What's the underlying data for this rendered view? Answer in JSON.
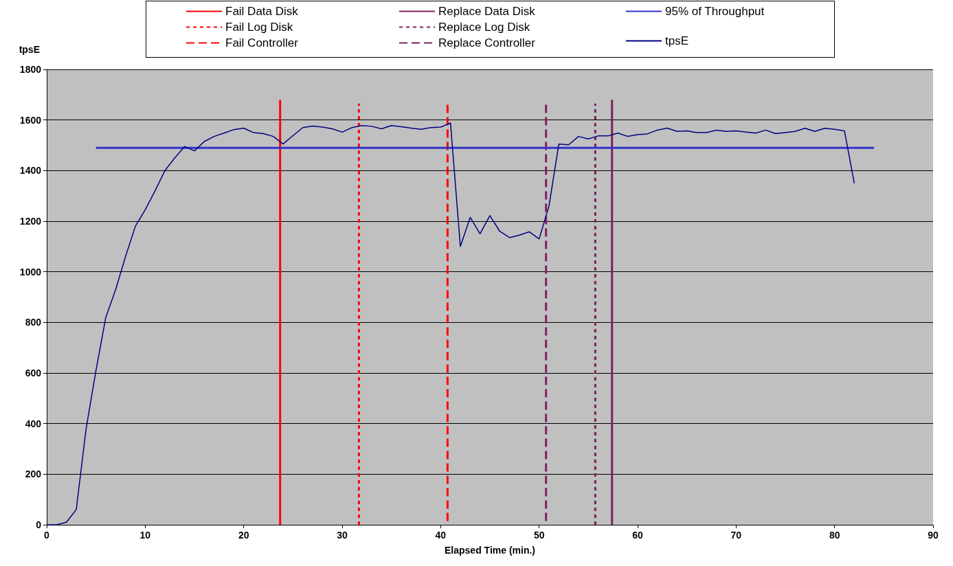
{
  "chart_data": {
    "type": "line",
    "xlabel": "Elapsed Time (min.)",
    "ylabel": "tpsE",
    "xlim": [
      0,
      90
    ],
    "xticks": [
      0,
      10,
      20,
      30,
      40,
      50,
      60,
      70,
      80,
      90
    ],
    "ylim": [
      0,
      1800
    ],
    "yticks": [
      0,
      200,
      400,
      600,
      800,
      1000,
      1200,
      1400,
      1600,
      1800
    ],
    "grid": "y",
    "legend": "top",
    "marker": "none",
    "x": [
      0,
      1,
      2,
      3,
      4,
      5,
      6,
      7,
      8,
      9,
      10,
      11,
      12,
      13,
      14,
      15,
      16,
      17,
      18,
      19,
      20,
      21,
      22,
      23,
      24,
      25,
      26,
      27,
      28,
      29,
      30,
      31,
      32,
      33,
      34,
      35,
      36,
      37,
      38,
      39,
      40,
      41,
      42,
      43,
      44,
      45,
      46,
      47,
      48,
      49,
      50,
      51,
      52,
      53,
      54,
      55,
      56,
      57,
      58,
      59,
      60,
      61,
      62,
      63,
      64,
      65,
      66,
      67,
      68,
      69,
      70,
      71,
      72,
      73,
      74,
      75,
      76,
      77,
      78,
      79,
      80,
      81,
      82
    ],
    "series": [
      {
        "name": "Fail Data Disk",
        "color": "#ff0000",
        "line_style": "solid",
        "x": [
          23.7,
          23.7
        ],
        "values": [
          0,
          1680
        ]
      },
      {
        "name": "Fail Log Disk",
        "color": "#ff0000",
        "line_style": "dotted",
        "x": [
          31.7,
          31.7
        ],
        "values": [
          0,
          1665
        ]
      },
      {
        "name": "Fail Controller",
        "color": "#ff0000",
        "line_style": "dashed",
        "x": [
          40.7,
          40.7
        ],
        "values": [
          1660,
          0
        ]
      },
      {
        "name": "Replace Data Disk",
        "color": "#801f5f",
        "line_style": "solid",
        "x": [
          57.4,
          57.4
        ],
        "values": [
          0,
          1680
        ]
      },
      {
        "name": "Replace Log Disk",
        "color": "#801f5f",
        "line_style": "dotted",
        "x": [
          55.7,
          55.7
        ],
        "values": [
          0,
          1665
        ]
      },
      {
        "name": "Replace Controller",
        "color": "#801f5f",
        "line_style": "dashed",
        "x": [
          50.7,
          50.7
        ],
        "values": [
          1660,
          0
        ]
      },
      {
        "name": "95% of Throughput",
        "color": "#3333cc",
        "line_style": "solid",
        "x": [
          5,
          84
        ],
        "values": [
          1490,
          1490
        ]
      },
      {
        "name": "tpsE",
        "color": "#000080",
        "line_style": "solid",
        "values": [
          0,
          0,
          10,
          60,
          380,
          610,
          820,
          930,
          1060,
          1180,
          1245,
          1320,
          1400,
          1450,
          1495,
          1478,
          1515,
          1535,
          1548,
          1562,
          1568,
          1550,
          1546,
          1535,
          1505,
          1538,
          1570,
          1576,
          1572,
          1565,
          1552,
          1570,
          1578,
          1575,
          1565,
          1578,
          1573,
          1568,
          1563,
          1570,
          1572,
          1588,
          1100,
          1215,
          1150,
          1222,
          1160,
          1135,
          1145,
          1158,
          1130,
          1260,
          1505,
          1502,
          1535,
          1525,
          1537,
          1537,
          1548,
          1535,
          1542,
          1545,
          1560,
          1568,
          1555,
          1557,
          1550,
          1550,
          1560,
          1555,
          1557,
          1552,
          1548,
          1560,
          1546,
          1550,
          1555,
          1567,
          1555,
          1567,
          1563,
          1557,
          1350
        ]
      }
    ]
  }
}
